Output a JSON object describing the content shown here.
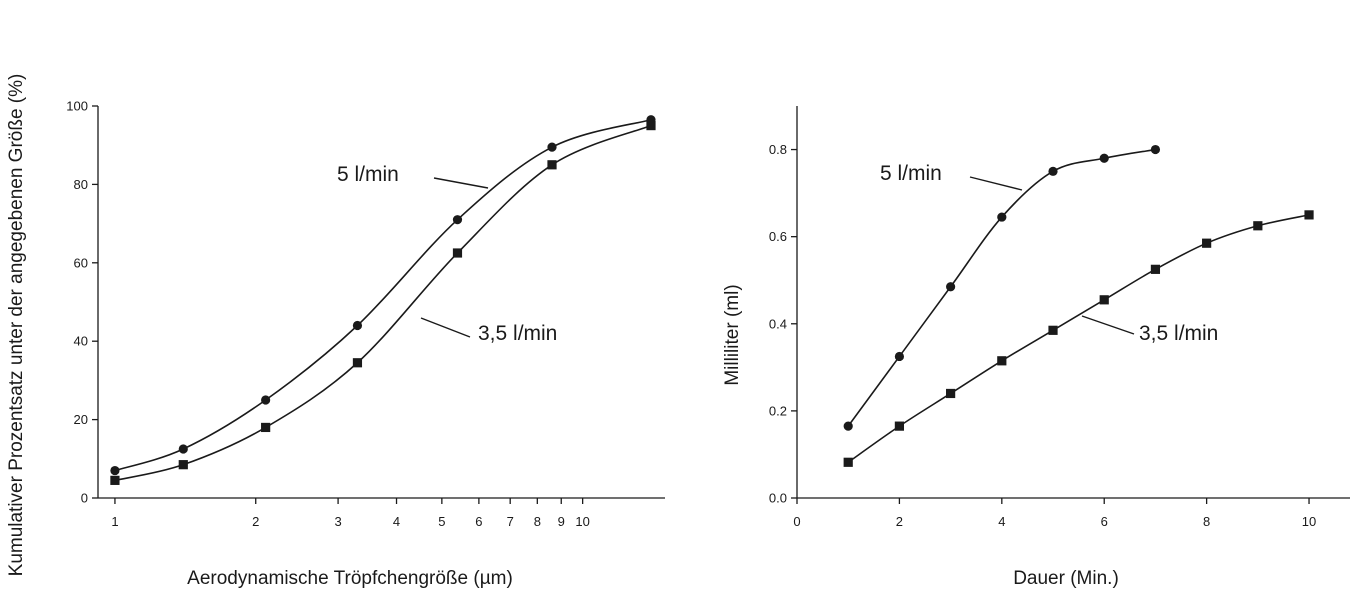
{
  "chart_data": [
    {
      "type": "line",
      "xlabel": "Aerodynamische Tröpfchengröße (µm)",
      "ylabel": "Kumulativer Prozentsatz unter der angegebenen Größe (%)",
      "x_scale": "log",
      "xlim": [
        0.92,
        15.0
      ],
      "ylim": [
        0,
        100
      ],
      "x_ticks": [
        1,
        2,
        3,
        4,
        5,
        6,
        7,
        8,
        9,
        10
      ],
      "x_tick_labels": [
        "1",
        "2",
        "3",
        "4",
        "5",
        "6",
        "7",
        "8",
        "9",
        "10"
      ],
      "y_ticks": [
        0,
        20,
        40,
        60,
        80,
        100
      ],
      "y_tick_labels": [
        "0",
        "20",
        "40",
        "60",
        "80",
        "100"
      ],
      "grid": false,
      "series": [
        {
          "name": "5 l/min",
          "marker": "circle",
          "x": [
            1.0,
            1.4,
            2.1,
            3.3,
            5.4,
            8.6,
            14.0
          ],
          "y": [
            7,
            12.5,
            25,
            44,
            71,
            89.5,
            96.5
          ]
        },
        {
          "name": "3,5 l/min",
          "marker": "square",
          "x": [
            1.0,
            1.4,
            2.1,
            3.3,
            5.4,
            8.6,
            14.0
          ],
          "y": [
            4.5,
            8.5,
            18,
            34.5,
            62.5,
            85,
            95
          ]
        }
      ]
    },
    {
      "type": "line",
      "xlabel": "Dauer (Min.)",
      "ylabel": "Milliliter (ml)",
      "xlim": [
        0,
        10.8
      ],
      "ylim": [
        0,
        0.9
      ],
      "x_ticks": [
        0,
        2,
        4,
        6,
        8,
        10
      ],
      "x_tick_labels": [
        "0",
        "2",
        "4",
        "6",
        "8",
        "10"
      ],
      "y_ticks": [
        0.0,
        0.2,
        0.4,
        0.6,
        0.8
      ],
      "y_tick_labels": [
        "0.0",
        "0.2",
        "0.4",
        "0.6",
        "0.8"
      ],
      "grid": false,
      "series": [
        {
          "name": "5 l/min",
          "marker": "circle",
          "x": [
            1,
            2,
            3,
            4,
            5,
            6,
            7
          ],
          "y": [
            0.165,
            0.325,
            0.485,
            0.645,
            0.75,
            0.78,
            0.8
          ]
        },
        {
          "name": "3,5 l/min",
          "marker": "square",
          "x": [
            1,
            2,
            3,
            4,
            5,
            6,
            7,
            8,
            9,
            10
          ],
          "y": [
            0.082,
            0.165,
            0.24,
            0.315,
            0.385,
            0.455,
            0.525,
            0.585,
            0.625,
            0.65
          ]
        }
      ]
    }
  ]
}
